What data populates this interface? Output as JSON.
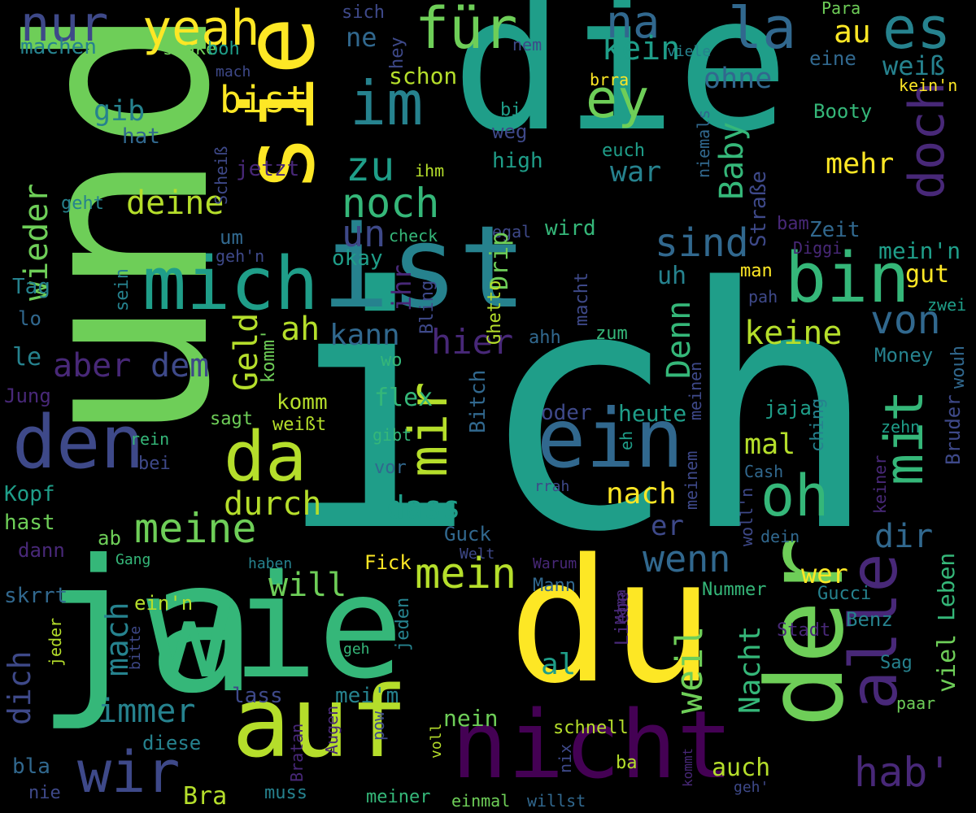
{
  "palette": {
    "background": "#000000",
    "viridis": [
      "#440154",
      "#482878",
      "#3e4989",
      "#31688e",
      "#26828e",
      "#1f9e89",
      "#35b779",
      "#6ece58",
      "#b5de2b",
      "#fde725"
    ]
  },
  "words": [
    {
      "text": "ich",
      "color": "#1f9e89"
    },
    {
      "text": "und",
      "color": "#6ece58"
    },
    {
      "text": "die",
      "color": "#1f9e89"
    },
    {
      "text": "du",
      "color": "#fde725"
    },
    {
      "text": "ja",
      "color": "#35b779"
    },
    {
      "text": "wie",
      "color": "#35b779"
    },
    {
      "text": "ist",
      "color": "#26828e"
    },
    {
      "text": "sie",
      "color": "#fde725"
    },
    {
      "text": "der",
      "color": "#6ece58"
    },
    {
      "text": "auf",
      "color": "#b5de2b"
    },
    {
      "text": "nicht",
      "color": "#440154"
    },
    {
      "text": "ein",
      "color": "#31688e"
    },
    {
      "text": "mich",
      "color": "#1f9e89"
    },
    {
      "text": "bin",
      "color": "#35b779"
    },
    {
      "text": "den",
      "color": "#3e4989"
    },
    {
      "text": "da",
      "color": "#b5de2b"
    },
    {
      "text": "alle",
      "color": "#482878"
    },
    {
      "text": "im",
      "color": "#26828e"
    },
    {
      "text": "für",
      "color": "#6ece58"
    },
    {
      "text": "nur",
      "color": "#3e4989"
    },
    {
      "text": "la",
      "color": "#31688e"
    },
    {
      "text": "es",
      "color": "#26828e"
    },
    {
      "text": "mir",
      "color": "#b5de2b"
    },
    {
      "text": "mit",
      "color": "#35b779"
    },
    {
      "text": "oh",
      "color": "#35b779"
    },
    {
      "text": "ey",
      "color": "#6ece58"
    },
    {
      "text": "yeah",
      "color": "#fde725"
    },
    {
      "text": "na",
      "color": "#31688e"
    },
    {
      "text": "doch",
      "color": "#482878"
    },
    {
      "text": "noch",
      "color": "#35b779"
    },
    {
      "text": "zu",
      "color": "#1f9e89"
    },
    {
      "text": "sind",
      "color": "#31688e"
    },
    {
      "text": "von",
      "color": "#31688e"
    },
    {
      "text": "wenn",
      "color": "#31688e"
    },
    {
      "text": "wir",
      "color": "#3e4989"
    },
    {
      "text": "meine",
      "color": "#6ece58"
    },
    {
      "text": "mein",
      "color": "#b5de2b"
    },
    {
      "text": "hab'",
      "color": "#482878"
    },
    {
      "text": "bist",
      "color": "#fde725"
    },
    {
      "text": "deine",
      "color": "#b5de2b"
    },
    {
      "text": "wieder",
      "color": "#6ece58"
    },
    {
      "text": "kein",
      "color": "#1f9e89"
    },
    {
      "text": "au",
      "color": "#fde725"
    },
    {
      "text": "weiß",
      "color": "#26828e"
    },
    {
      "text": "ohne",
      "color": "#31688e"
    },
    {
      "text": "ne",
      "color": "#31688e"
    },
    {
      "text": "Baby",
      "color": "#35b779"
    },
    {
      "text": "mehr",
      "color": "#fde725"
    },
    {
      "text": "war",
      "color": "#26828e"
    },
    {
      "text": "gib",
      "color": "#26828e"
    },
    {
      "text": "un",
      "color": "#3e4989"
    },
    {
      "text": "Geld",
      "color": "#b5de2b"
    },
    {
      "text": "ah",
      "color": "#b5de2b"
    },
    {
      "text": "kann",
      "color": "#31688e"
    },
    {
      "text": "hier",
      "color": "#482878"
    },
    {
      "text": "Denn",
      "color": "#35b779"
    },
    {
      "text": "keine",
      "color": "#b5de2b"
    },
    {
      "text": "uh",
      "color": "#26828e"
    },
    {
      "text": "aber",
      "color": "#482878"
    },
    {
      "text": "dem",
      "color": "#3e4989"
    },
    {
      "text": "will",
      "color": "#6ece58"
    },
    {
      "text": "durch",
      "color": "#b5de2b"
    },
    {
      "text": "dass",
      "color": "#1f9e89"
    },
    {
      "text": "nach",
      "color": "#fde725"
    },
    {
      "text": "mal",
      "color": "#b5de2b"
    },
    {
      "text": "dir",
      "color": "#31688e"
    },
    {
      "text": "er",
      "color": "#3e4989"
    },
    {
      "text": "wer",
      "color": "#fde725"
    },
    {
      "text": "weil",
      "color": "#6ece58"
    },
    {
      "text": "immer",
      "color": "#26828e"
    },
    {
      "text": "dich",
      "color": "#3e4989"
    },
    {
      "text": "mach",
      "color": "#26828e"
    },
    {
      "text": "al",
      "color": "#1f9e89"
    },
    {
      "text": "Nacht",
      "color": "#35b779"
    },
    {
      "text": "Leben",
      "color": "#35b779"
    },
    {
      "text": "viel",
      "color": "#6ece58"
    },
    {
      "text": "auch",
      "color": "#b5de2b"
    },
    {
      "text": "nein",
      "color": "#6ece58"
    },
    {
      "text": "Bra",
      "color": "#b5de2b"
    },
    {
      "text": "machen",
      "color": "#26828e"
    },
    {
      "text": "shake",
      "color": "#6ece58"
    },
    {
      "text": "boh",
      "color": "#1f9e89"
    },
    {
      "text": "sich",
      "color": "#3e4989"
    },
    {
      "text": "hey",
      "color": "#3e4989"
    },
    {
      "text": "nem",
      "color": "#3e4989"
    },
    {
      "text": "viele",
      "color": "#26828e"
    },
    {
      "text": "eine",
      "color": "#31688e"
    },
    {
      "text": "Para",
      "color": "#6ece58"
    },
    {
      "text": "kein'n",
      "color": "#fde725"
    },
    {
      "text": "schon",
      "color": "#b5de2b"
    },
    {
      "text": "brra",
      "color": "#fde725"
    },
    {
      "text": "Booty",
      "color": "#35b779"
    },
    {
      "text": "hat",
      "color": "#31688e"
    },
    {
      "text": "mach",
      "color": "#3e4989"
    },
    {
      "text": "bi",
      "color": "#1f9e89"
    },
    {
      "text": "weg",
      "color": "#3e4989"
    },
    {
      "text": "high",
      "color": "#1f9e89"
    },
    {
      "text": "euch",
      "color": "#1f9e89"
    },
    {
      "text": "niemals",
      "color": "#31688e"
    },
    {
      "text": "Straße",
      "color": "#3e4989"
    },
    {
      "text": "Scheiß",
      "color": "#3e4989"
    },
    {
      "text": "jetzt",
      "color": "#482878"
    },
    {
      "text": "ihm",
      "color": "#b5de2b"
    },
    {
      "text": "geht",
      "color": "#26828e"
    },
    {
      "text": "um",
      "color": "#31688e"
    },
    {
      "text": "check",
      "color": "#35b779"
    },
    {
      "text": "egal",
      "color": "#3e4989"
    },
    {
      "text": "wird",
      "color": "#35b779"
    },
    {
      "text": "Zeit",
      "color": "#31688e"
    },
    {
      "text": "bam",
      "color": "#482878"
    },
    {
      "text": "Diggi",
      "color": "#482878"
    },
    {
      "text": "mein'n",
      "color": "#1f9e89"
    },
    {
      "text": "geh'n",
      "color": "#3e4989"
    },
    {
      "text": "okay",
      "color": "#1f9e89"
    },
    {
      "text": "ihr",
      "color": "#482878"
    },
    {
      "text": "Drip",
      "color": "#6ece58"
    },
    {
      "text": "Bling",
      "color": "#3e4989"
    },
    {
      "text": "Ghetto",
      "color": "#b5de2b"
    },
    {
      "text": "man",
      "color": "#fde725"
    },
    {
      "text": "gut",
      "color": "#fde725"
    },
    {
      "text": "pah",
      "color": "#3e4989"
    },
    {
      "text": "zwei",
      "color": "#1f9e89"
    },
    {
      "text": "Tag",
      "color": "#26828e"
    },
    {
      "text": "sein",
      "color": "#26828e"
    },
    {
      "text": "lo",
      "color": "#31688e"
    },
    {
      "text": "ahh",
      "color": "#31688e"
    },
    {
      "text": "macht",
      "color": "#3e4989"
    },
    {
      "text": "zum",
      "color": "#35b779"
    },
    {
      "text": "komm'",
      "color": "#6ece58"
    },
    {
      "text": "le",
      "color": "#26828e"
    },
    {
      "text": "Money",
      "color": "#26828e"
    },
    {
      "text": "wo",
      "color": "#35b779"
    },
    {
      "text": "wouh",
      "color": "#31688e"
    },
    {
      "text": "Jung",
      "color": "#482878"
    },
    {
      "text": "flex",
      "color": "#35b779"
    },
    {
      "text": "meinen",
      "color": "#3e4989"
    },
    {
      "text": "komm",
      "color": "#b5de2b"
    },
    {
      "text": "jaja",
      "color": "#1f9e89"
    },
    {
      "text": "oder",
      "color": "#3e4989"
    },
    {
      "text": "heute",
      "color": "#1f9e89"
    },
    {
      "text": "sagt",
      "color": "#6ece58"
    },
    {
      "text": "weißt",
      "color": "#b5de2b"
    },
    {
      "text": "Bitch",
      "color": "#31688e"
    },
    {
      "text": "ching",
      "color": "#26828e"
    },
    {
      "text": "Bruder",
      "color": "#3e4989"
    },
    {
      "text": "zehn",
      "color": "#1f9e89"
    },
    {
      "text": "gibt",
      "color": "#35b779"
    },
    {
      "text": "rein",
      "color": "#35b779"
    },
    {
      "text": "bei",
      "color": "#3e4989"
    },
    {
      "text": "eh",
      "color": "#1f9e89"
    },
    {
      "text": "vor",
      "color": "#31688e"
    },
    {
      "text": "Cash",
      "color": "#31688e"
    },
    {
      "text": "keiner",
      "color": "#482878"
    },
    {
      "text": "Kopf",
      "color": "#1f9e89"
    },
    {
      "text": "rrah",
      "color": "#3e4989"
    },
    {
      "text": "meinem",
      "color": "#3e4989"
    },
    {
      "text": "woll'n",
      "color": "#3e4989"
    },
    {
      "text": "hast",
      "color": "#6ece58"
    },
    {
      "text": "Guck",
      "color": "#31688e"
    },
    {
      "text": "dein",
      "color": "#31688e"
    },
    {
      "text": "ab",
      "color": "#6ece58"
    },
    {
      "text": "dann",
      "color": "#482878"
    },
    {
      "text": "Welt",
      "color": "#3e4989"
    },
    {
      "text": "Gang",
      "color": "#35b779"
    },
    {
      "text": "Fick",
      "color": "#fde725"
    },
    {
      "text": "haben",
      "color": "#26828e"
    },
    {
      "text": "Warum",
      "color": "#482878"
    },
    {
      "text": "skrrt",
      "color": "#31688e"
    },
    {
      "text": "ein'n",
      "color": "#b5de2b"
    },
    {
      "text": "Mann",
      "color": "#31688e"
    },
    {
      "text": "Nummer",
      "color": "#35b779"
    },
    {
      "text": "Gucci",
      "color": "#26828e"
    },
    {
      "text": "Mama",
      "color": "#482878"
    },
    {
      "text": "Liebe",
      "color": "#482878"
    },
    {
      "text": "Benz",
      "color": "#26828e"
    },
    {
      "text": "jeder",
      "color": "#b5de2b"
    },
    {
      "text": "bitte",
      "color": "#3e4989"
    },
    {
      "text": "jeden",
      "color": "#26828e"
    },
    {
      "text": "Stadt",
      "color": "#482878"
    },
    {
      "text": "geh",
      "color": "#35b779"
    },
    {
      "text": "Sag",
      "color": "#26828e"
    },
    {
      "text": "lass",
      "color": "#3e4989"
    },
    {
      "text": "mei'm",
      "color": "#26828e"
    },
    {
      "text": "paar",
      "color": "#6ece58"
    },
    {
      "text": "Augen",
      "color": "#482878"
    },
    {
      "text": "schnell",
      "color": "#b5de2b"
    },
    {
      "text": "diese",
      "color": "#26828e"
    },
    {
      "text": "Bratan",
      "color": "#482878"
    },
    {
      "text": "pow",
      "color": "#3e4989"
    },
    {
      "text": "voll",
      "color": "#b5de2b"
    },
    {
      "text": "nix",
      "color": "#3e4989"
    },
    {
      "text": "ba",
      "color": "#b5de2b"
    },
    {
      "text": "bla",
      "color": "#31688e"
    },
    {
      "text": "kommt",
      "color": "#482878"
    },
    {
      "text": "geh'",
      "color": "#3e4989"
    },
    {
      "text": "nie",
      "color": "#3e4989"
    },
    {
      "text": "muss",
      "color": "#26828e"
    },
    {
      "text": "meiner",
      "color": "#35b779"
    },
    {
      "text": "einmal",
      "color": "#6ece58"
    },
    {
      "text": "willst",
      "color": "#31688e"
    }
  ]
}
